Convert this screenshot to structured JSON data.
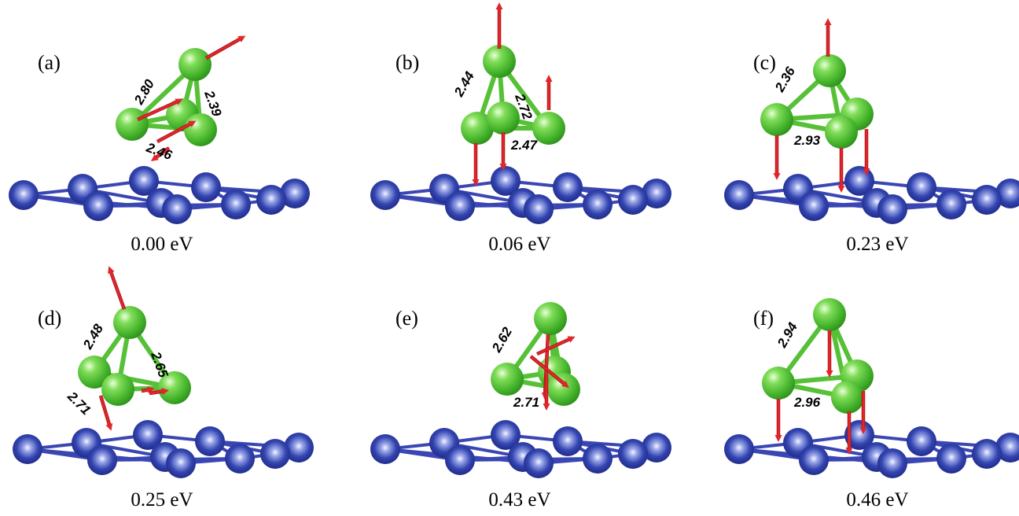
{
  "colors": {
    "cluster_atom": "#5cc63a",
    "cluster_bond": "#56c137",
    "substrate_atom": "#2b3a9e",
    "substrate_bond": "#3a46b3",
    "displacement_arrow": "#e0262b",
    "background": "#ffffff"
  },
  "panels": [
    {
      "label": "(a)",
      "energy": "0.00 eV",
      "distances": [
        "2.80",
        "2.39",
        "2.46"
      ]
    },
    {
      "label": "(b)",
      "energy": "0.06 eV",
      "distances": [
        "2.44",
        "2.72",
        "2.47"
      ]
    },
    {
      "label": "(c)",
      "energy": "0.23 eV",
      "distances": [
        "2.36",
        "2.93"
      ]
    },
    {
      "label": "(d)",
      "energy": "0.25 eV",
      "distances": [
        "2.48",
        "2.65",
        "2.71"
      ]
    },
    {
      "label": "(e)",
      "energy": "0.43 eV",
      "distances": [
        "2.62",
        "2.71"
      ]
    },
    {
      "label": "(f)",
      "energy": "0.46 eV",
      "distances": [
        "2.94",
        "2.96"
      ]
    }
  ]
}
